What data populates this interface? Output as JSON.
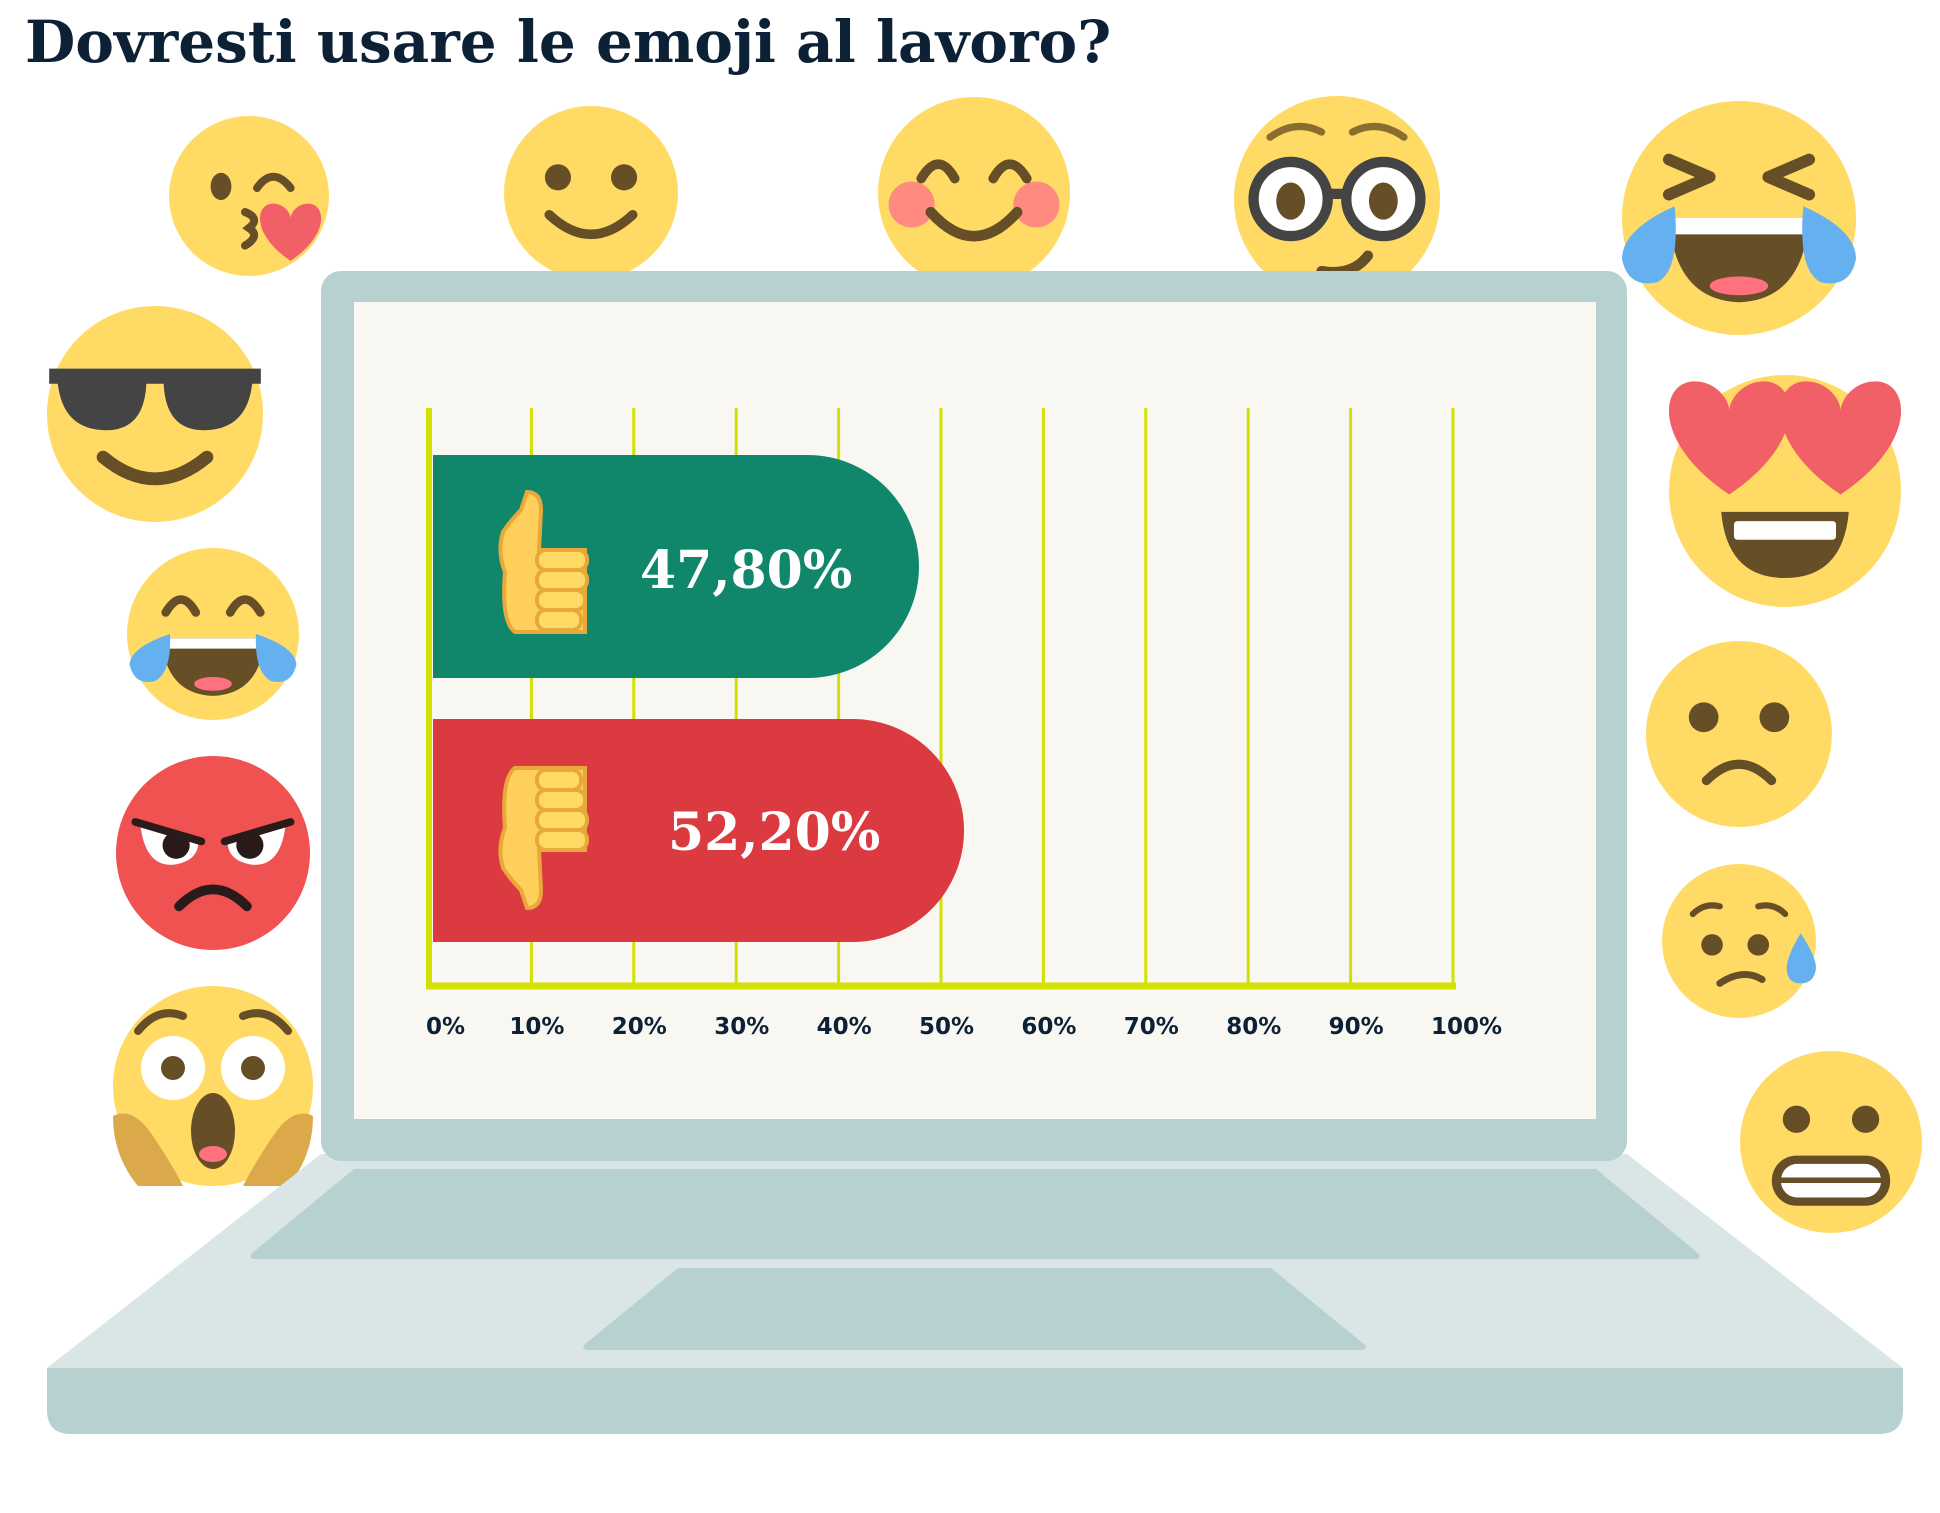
{
  "title": "Dovresti usare le emoji al lavoro?",
  "colors": {
    "title": "#0c2136",
    "yes_bar": "#10876a",
    "no_bar": "#db3a40",
    "grid": "#d4e000",
    "laptop_bezel": "#b7d1d1",
    "laptop_deck": "#d9e6e5",
    "screen": "#f8f7f2",
    "emoji_yellow": "#ffdb66"
  },
  "chart_data": {
    "type": "bar",
    "orientation": "horizontal",
    "title": "Dovresti usare le emoji al lavoro?",
    "categories": [
      "thumbs-up",
      "thumbs-down"
    ],
    "values": [
      47.8,
      52.2
    ],
    "value_labels": [
      "47,80%",
      "52,20%"
    ],
    "bar_colors": [
      "#10876a",
      "#db3a40"
    ],
    "xlim": [
      0,
      100
    ],
    "x_ticks": [
      "0%",
      "10%",
      "20%",
      "30%",
      "40%",
      "50%",
      "60%",
      "70%",
      "80%",
      "90%",
      "100%"
    ],
    "grid": true,
    "legend": "none"
  },
  "decorations": {
    "emojis": [
      "kissing-heart",
      "smiling",
      "blushing",
      "nerd-glasses",
      "laughing-tears",
      "sunglasses",
      "heart-eyes",
      "laughing-tears-small",
      "frowning",
      "angry",
      "sad-sweat",
      "screaming",
      "grimacing"
    ]
  }
}
